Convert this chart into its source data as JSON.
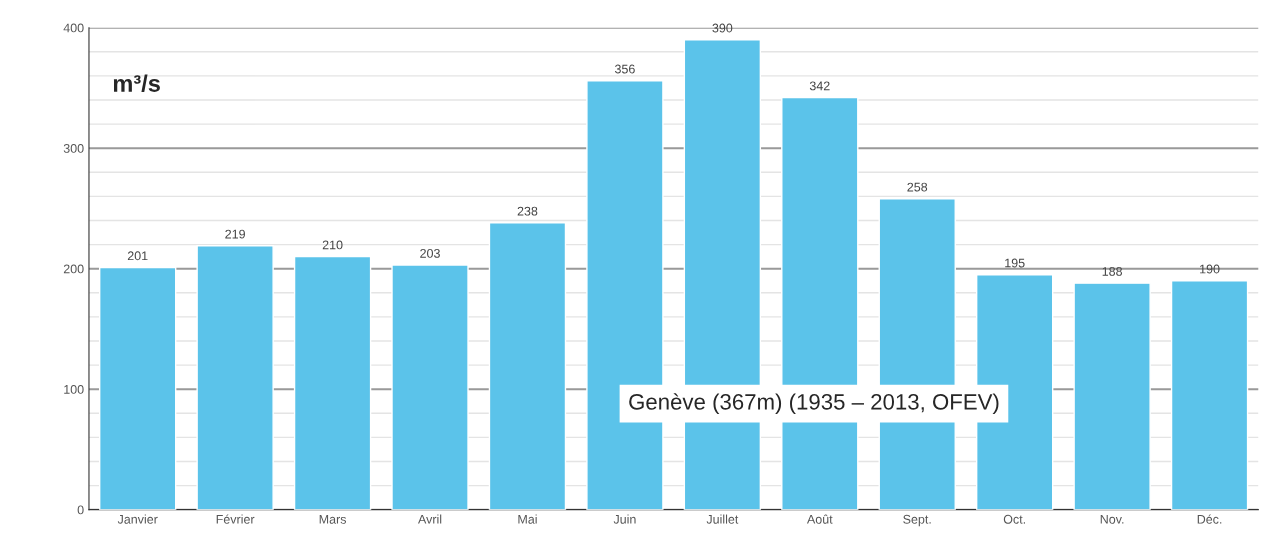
{
  "chart_data": {
    "type": "bar",
    "categories": [
      "Janvier",
      "Février",
      "Mars",
      "Avril",
      "Mai",
      "Juin",
      "Juillet",
      "Août",
      "Sept.",
      "Oct.",
      "Nov.",
      "Déc."
    ],
    "values": [
      201,
      219,
      210,
      203,
      238,
      356,
      390,
      342,
      258,
      195,
      188,
      190
    ],
    "color": "#5bc3ea",
    "ylim": [
      0,
      400
    ],
    "yticks": [
      0,
      100,
      200,
      300,
      400
    ],
    "data_labels": true,
    "grid": "y",
    "legend": false,
    "annotations": [
      "m³/s",
      "Genève (367m) (1935 – 2013, OFEV)"
    ]
  }
}
